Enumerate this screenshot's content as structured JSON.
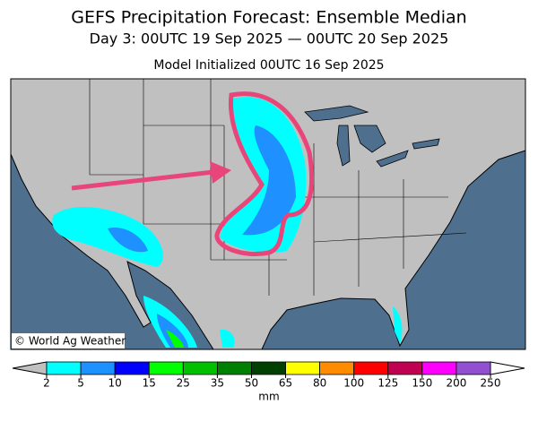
{
  "header": {
    "title": "GEFS Precipitation Forecast: Ensemble Median",
    "subtitle": "Day 3: 00UTC 19 Sep 2025 — 00UTC 20 Sep 2025",
    "initialized": "Model Initialized 00UTC 16 Sep 2025"
  },
  "map": {
    "credit": "© World Ag Weather"
  },
  "colorbar": {
    "ticks": [
      2,
      5,
      10,
      15,
      25,
      35,
      50,
      65,
      80,
      100,
      125,
      150,
      200,
      250
    ],
    "colors": [
      "#00ffff",
      "#1e90ff",
      "#0000ff",
      "#00ff00",
      "#00c000",
      "#008000",
      "#004000",
      "#ffff00",
      "#ff8c00",
      "#ff0000",
      "#c00050",
      "#ff00ff",
      "#9050d0"
    ],
    "under_color": "#c0c0c0",
    "over_color": "#ffffff",
    "unit": "mm"
  }
}
